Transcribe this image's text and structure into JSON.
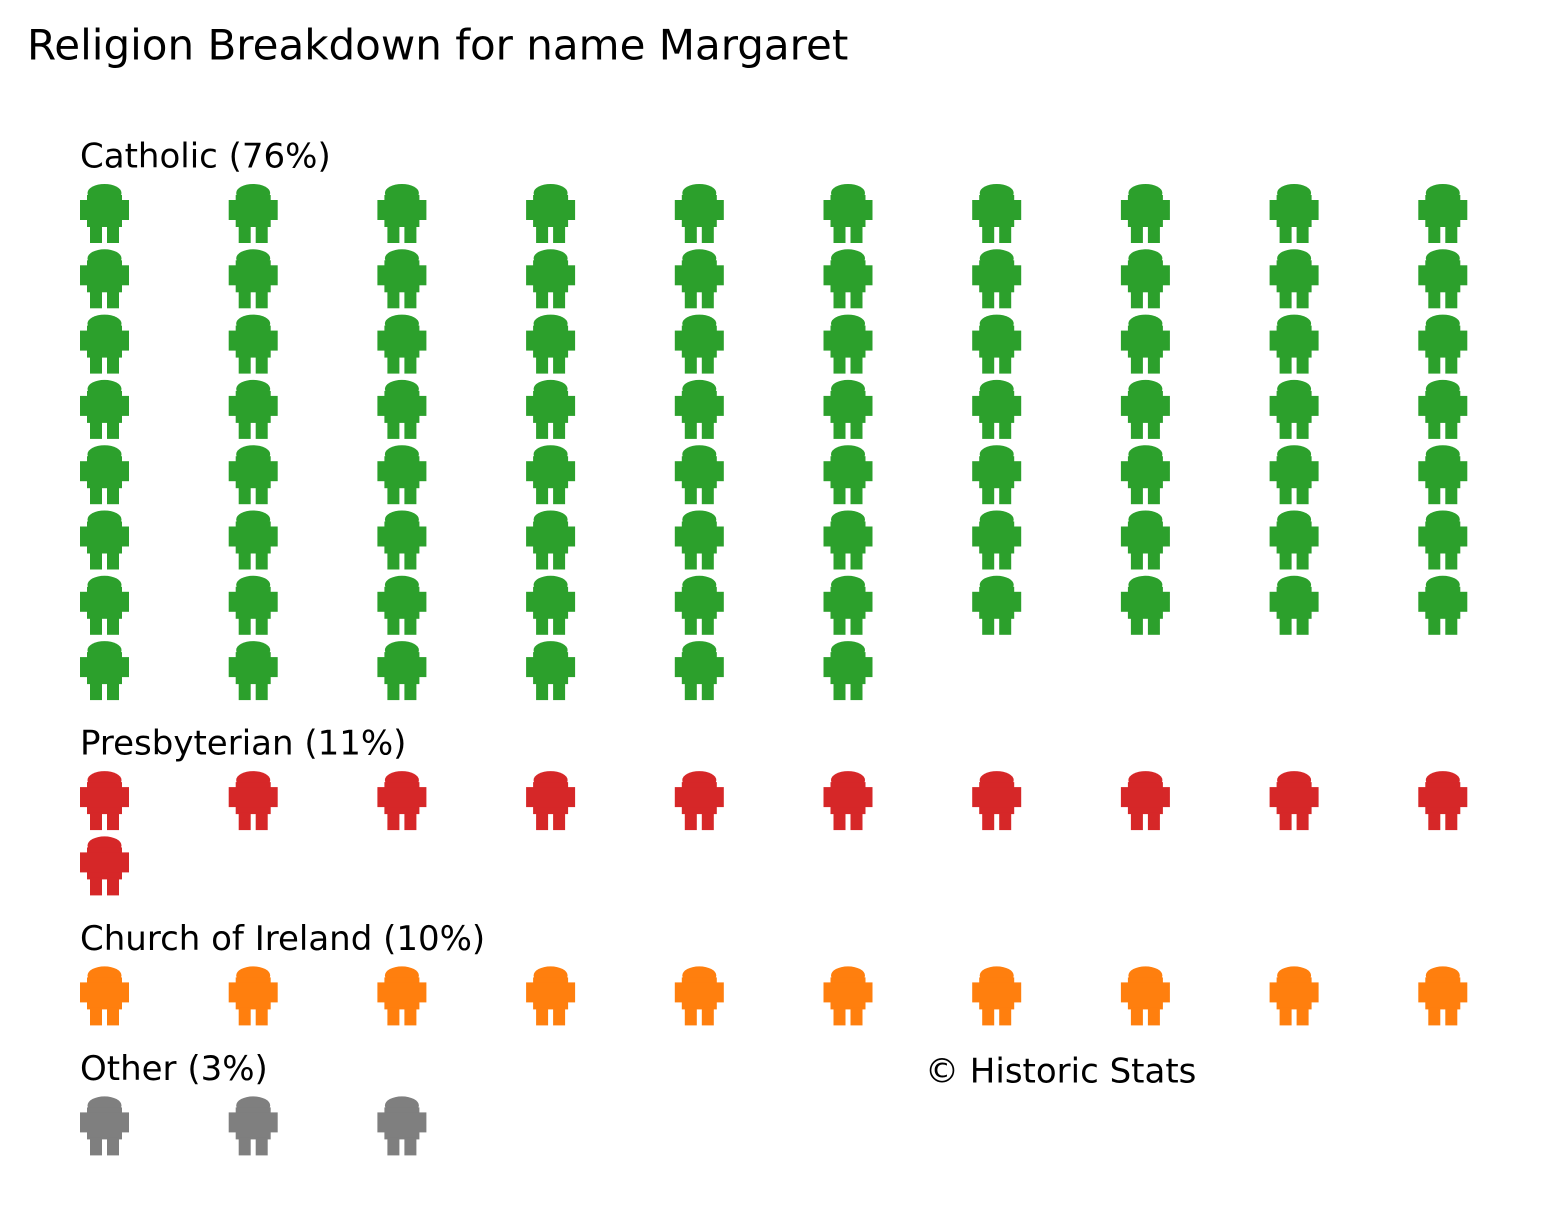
{
  "chart_data": {
    "type": "pictogram",
    "title": "Religion Breakdown for name Margaret",
    "categories": [
      "Catholic (76%)",
      "Presbyterian (11%)",
      "Church of Ireland (10%)",
      "Other (3%)"
    ],
    "values": [
      76,
      11,
      10,
      3
    ],
    "colors": [
      "#2ca02c",
      "#d62728",
      "#ff7f0e",
      "#7f7f7f"
    ],
    "source": "© Historic Stats"
  }
}
